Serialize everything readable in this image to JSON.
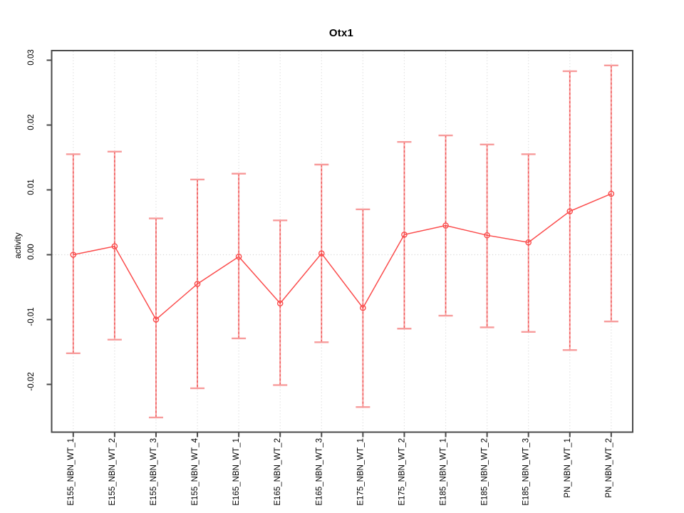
{
  "chart_data": {
    "type": "line",
    "title": "Otx1",
    "xlabel": "",
    "ylabel": "activity",
    "legend": "none",
    "grid": {
      "vertical": "dotted line at every category",
      "horizontal": "dotted line at y=0 only"
    },
    "categories": [
      "E155_NBN_WT_1",
      "E155_NBN_WT_2",
      "E155_NBN_WT_3",
      "E155_NBN_WT_4",
      "E165_NBN_WT_1",
      "E165_NBN_WT_2",
      "E165_NBN_WT_3",
      "E175_NBN_WT_1",
      "E175_NBN_WT_2",
      "E185_NBN_WT_1",
      "E185_NBN_WT_2",
      "E185_NBN_WT_3",
      "PN_NBN_WT_1",
      "PN_NBN_WT_2"
    ],
    "series": [
      {
        "name": "activity",
        "marker": "open-circle",
        "values": [
          0.0,
          0.0013,
          -0.01,
          -0.0045,
          -0.0003,
          -0.0075,
          0.0002,
          -0.0082,
          0.0031,
          0.0045,
          0.003,
          0.0019,
          0.0067,
          0.0094
        ],
        "error_high": [
          0.0155,
          0.0159,
          0.0056,
          0.0116,
          0.0125,
          0.0053,
          0.0139,
          0.007,
          0.0174,
          0.0184,
          0.017,
          0.0155,
          0.0283,
          0.0292
        ],
        "error_low": [
          -0.0152,
          -0.0131,
          -0.0251,
          -0.0206,
          -0.0129,
          -0.0201,
          -0.0135,
          -0.0235,
          -0.0114,
          -0.0094,
          -0.0112,
          -0.0119,
          -0.0147,
          -0.0103
        ]
      }
    ],
    "yticks": {
      "values": [
        0.03,
        0.02,
        0.01,
        0.0,
        -0.01,
        -0.02
      ],
      "labels": [
        "0.03",
        "0.02",
        "0.01",
        "0.00",
        "-0.01",
        "-0.02"
      ]
    },
    "ylim": [
      -0.0273,
      0.0315
    ],
    "colors": {
      "series_line": "#fb4c4c",
      "marker_stroke": "#fb4c4c",
      "error_bar": "#f79b9b",
      "error_bar_dash": "#ef5252",
      "grid_line": "#dcdcdc",
      "zero_line": "#d8d8d8",
      "axis_box": "#4a4a4a",
      "text": "#000000",
      "background": "#ffffff"
    }
  }
}
